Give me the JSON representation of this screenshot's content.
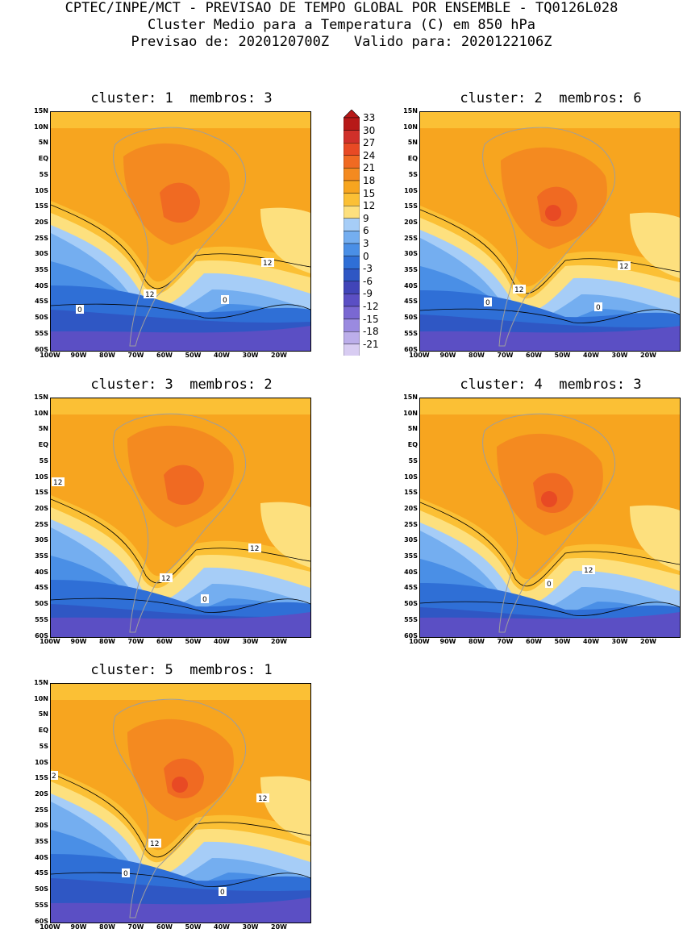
{
  "header": {
    "line1": "CPTEC/INPE/MCT - PREVISAO DE TEMPO GLOBAL POR ENSEMBLE - TQ0126L028",
    "line2": "Cluster Medio para a Temperatura (C) em 850 hPa",
    "line3": "Previsao de: 2020120700Z   Valido para: 2020122106Z"
  },
  "panels": [
    {
      "title": "cluster: 1  membros: 3",
      "contour_labels": [
        "12",
        "12",
        "0",
        "0"
      ]
    },
    {
      "title": "cluster: 2  membros: 6",
      "contour_labels": [
        "12",
        "12",
        "0",
        "0"
      ]
    },
    {
      "title": "cluster: 3  membros: 2",
      "contour_labels": [
        "12",
        "12",
        "12",
        "0"
      ]
    },
    {
      "title": "cluster: 4  membros: 3",
      "contour_labels": [
        "12",
        "0"
      ]
    },
    {
      "title": "cluster: 5  membros: 1",
      "contour_labels": [
        "2",
        "12",
        "12",
        "0",
        "0"
      ]
    }
  ],
  "lat_labels": [
    "15N",
    "10N",
    "5N",
    "EQ",
    "5S",
    "10S",
    "15S",
    "20S",
    "25S",
    "30S",
    "35S",
    "40S",
    "45S",
    "50S",
    "55S",
    "60S"
  ],
  "lon_labels": [
    "100W",
    "90W",
    "80W",
    "70W",
    "60W",
    "50W",
    "40W",
    "30W",
    "20W"
  ],
  "colorbar": {
    "labels": [
      "33",
      "30",
      "27",
      "24",
      "21",
      "18",
      "15",
      "12",
      "9",
      "6",
      "3",
      "0",
      "-3",
      "-6",
      "-9",
      "-12",
      "-15",
      "-18",
      "-21"
    ],
    "colors": [
      "#b71918",
      "#d0302a",
      "#e84a24",
      "#f06a22",
      "#f48a20",
      "#f7a51f",
      "#fbc035",
      "#fde07e",
      "#a6cdf7",
      "#74aef0",
      "#4a8fe6",
      "#2f6fd6",
      "#2f57c4",
      "#4145b8",
      "#5b4fc4",
      "#7a68d2",
      "#9a8ae0",
      "#bcaeea",
      "#d8ccf2",
      "#efe8fb"
    ]
  }
}
